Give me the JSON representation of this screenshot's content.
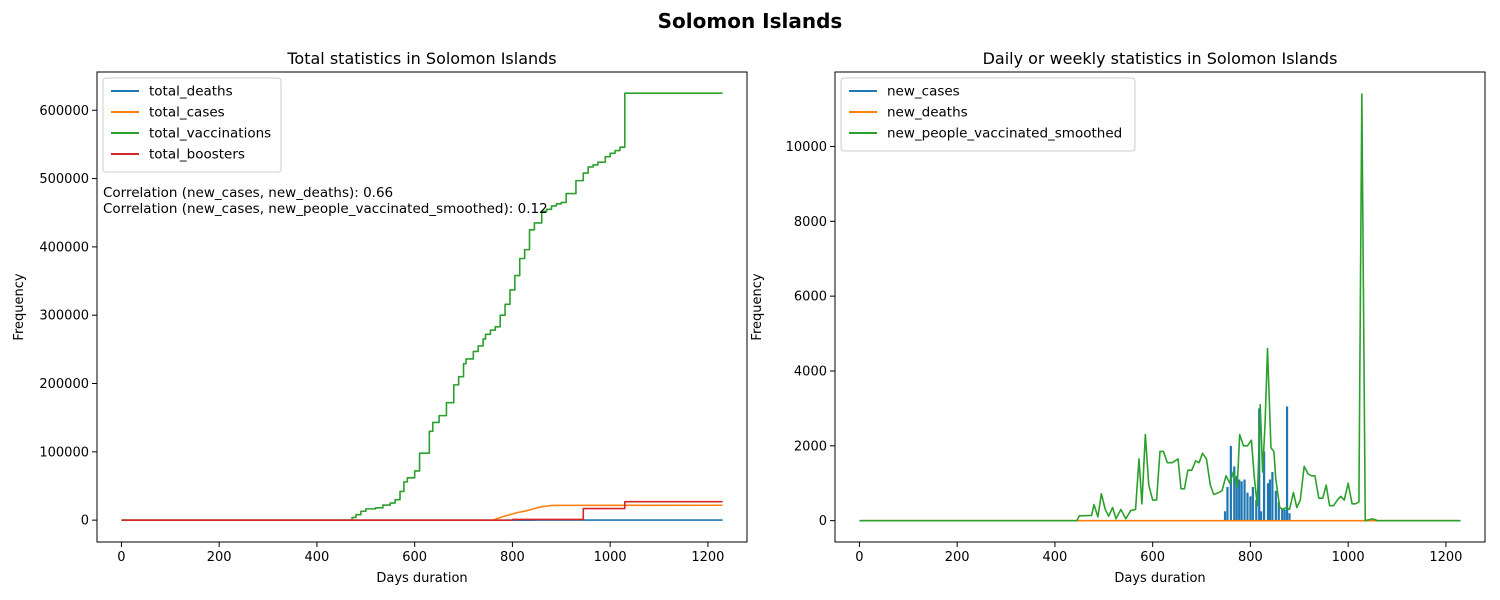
{
  "suptitle": "Solomon Islands",
  "colors": {
    "blue": "#1f77b4",
    "orange": "#ff7f0e",
    "green": "#2ca02c",
    "red": "#d62728"
  },
  "chart_data": [
    {
      "type": "line",
      "title": "Total statistics in Solomon Islands",
      "xlabel": "Days duration",
      "ylabel": "Frequency",
      "xlim": [
        -50,
        1280
      ],
      "ylim": [
        -32000,
        656000
      ],
      "xticks": [
        0,
        200,
        400,
        600,
        800,
        1000,
        1200
      ],
      "yticks": [
        0,
        100000,
        200000,
        300000,
        400000,
        500000,
        600000
      ],
      "legend_position": "upper-left",
      "annotations": [
        "Correlation (new_cases, new_deaths): 0.66",
        "Correlation (new_cases, new_people_vaccinated_smoothed): 0.12"
      ],
      "series": [
        {
          "name": "total_deaths",
          "color": "#1f77b4",
          "step": true,
          "points": [
            [
              0,
              0
            ],
            [
              845,
              0
            ],
            [
              845,
              150
            ],
            [
              1230,
              150
            ]
          ]
        },
        {
          "name": "total_cases",
          "color": "#ff7f0e",
          "step": false,
          "points": [
            [
              0,
              0
            ],
            [
              760,
              0
            ],
            [
              770,
              2500
            ],
            [
              780,
              5000
            ],
            [
              790,
              7000
            ],
            [
              800,
              9000
            ],
            [
              810,
              11000
            ],
            [
              820,
              12500
            ],
            [
              830,
              14000
            ],
            [
              840,
              16000
            ],
            [
              850,
              18000
            ],
            [
              860,
              19500
            ],
            [
              870,
              20500
            ],
            [
              880,
              21500
            ],
            [
              900,
              21600
            ],
            [
              1000,
              21700
            ],
            [
              1230,
              21800
            ]
          ]
        },
        {
          "name": "total_vaccinations",
          "color": "#2ca02c",
          "step": true,
          "points": [
            [
              0,
              0
            ],
            [
              465,
              0
            ],
            [
              472,
              4000
            ],
            [
              480,
              8000
            ],
            [
              490,
              13000
            ],
            [
              500,
              16500
            ],
            [
              520,
              18000
            ],
            [
              535,
              22000
            ],
            [
              550,
              25000
            ],
            [
              560,
              30000
            ],
            [
              570,
              42000
            ],
            [
              578,
              56000
            ],
            [
              585,
              62000
            ],
            [
              600,
              72000
            ],
            [
              610,
              98000
            ],
            [
              630,
              130000
            ],
            [
              637,
              143000
            ],
            [
              650,
              153000
            ],
            [
              665,
              172000
            ],
            [
              680,
              198000
            ],
            [
              690,
              210000
            ],
            [
              700,
              229000
            ],
            [
              705,
              236000
            ],
            [
              720,
              247000
            ],
            [
              730,
              255000
            ],
            [
              740,
              265000
            ],
            [
              745,
              272000
            ],
            [
              755,
              278000
            ],
            [
              765,
              283000
            ],
            [
              775,
              300000
            ],
            [
              785,
              316000
            ],
            [
              795,
              337000
            ],
            [
              805,
              358000
            ],
            [
              815,
              383000
            ],
            [
              825,
              396000
            ],
            [
              835,
              425000
            ],
            [
              845,
              435000
            ],
            [
              860,
              452000
            ],
            [
              870,
              455000
            ],
            [
              880,
              460000
            ],
            [
              890,
              463000
            ],
            [
              900,
              465000
            ],
            [
              910,
              478000
            ],
            [
              930,
              497000
            ],
            [
              945,
              508000
            ],
            [
              955,
              517000
            ],
            [
              965,
              520000
            ],
            [
              975,
              524000
            ],
            [
              990,
              532000
            ],
            [
              1000,
              537000
            ],
            [
              1010,
              541000
            ],
            [
              1020,
              546000
            ],
            [
              1030,
              625000
            ],
            [
              1230,
              625000
            ]
          ]
        },
        {
          "name": "total_boosters",
          "color": "#d62728",
          "step": true,
          "points": [
            [
              0,
              0
            ],
            [
              800,
              0
            ],
            [
              800,
              1000
            ],
            [
              945,
              1000
            ],
            [
              945,
              17000
            ],
            [
              1030,
              17000
            ],
            [
              1030,
              27000
            ],
            [
              1230,
              27000
            ]
          ]
        }
      ]
    },
    {
      "type": "line",
      "title": "Daily or weekly statistics in Solomon Islands",
      "xlabel": "Days duration",
      "ylabel": "Frequency",
      "xlim": [
        -50,
        1280
      ],
      "ylim": [
        -570,
        11990
      ],
      "xticks": [
        0,
        200,
        400,
        600,
        800,
        1000,
        1200
      ],
      "yticks": [
        0,
        2000,
        4000,
        6000,
        8000,
        10000
      ],
      "legend_position": "upper-left",
      "series": [
        {
          "name": "new_cases",
          "color": "#1f77b4",
          "spikes": [
            [
              748,
              250
            ],
            [
              753,
              900
            ],
            [
              760,
              2000
            ],
            [
              767,
              1450
            ],
            [
              772,
              1200
            ],
            [
              777,
              1100
            ],
            [
              782,
              1050
            ],
            [
              788,
              1100
            ],
            [
              794,
              750
            ],
            [
              800,
              650
            ],
            [
              805,
              900
            ],
            [
              812,
              550
            ],
            [
              818,
              3000
            ],
            [
              822,
              250
            ],
            [
              828,
              1850
            ],
            [
              836,
              1000
            ],
            [
              840,
              1100
            ],
            [
              845,
              1300
            ],
            [
              852,
              800
            ],
            [
              858,
              500
            ],
            [
              865,
              300
            ],
            [
              870,
              300
            ],
            [
              875,
              3050
            ],
            [
              880,
              200
            ]
          ]
        },
        {
          "name": "new_deaths",
          "color": "#ff7f0e",
          "points": [
            [
              0,
              0
            ],
            [
              1230,
              0
            ]
          ]
        },
        {
          "name": "new_people_vaccinated_smoothed",
          "color": "#2ca02c",
          "points": [
            [
              0,
              0
            ],
            [
              445,
              0
            ],
            [
              450,
              130
            ],
            [
              475,
              140
            ],
            [
              480,
              430
            ],
            [
              488,
              100
            ],
            [
              495,
              720
            ],
            [
              503,
              300
            ],
            [
              510,
              120
            ],
            [
              518,
              350
            ],
            [
              525,
              50
            ],
            [
              535,
              300
            ],
            [
              545,
              50
            ],
            [
              555,
              270
            ],
            [
              565,
              300
            ],
            [
              572,
              1650
            ],
            [
              578,
              450
            ],
            [
              585,
              2300
            ],
            [
              592,
              950
            ],
            [
              600,
              550
            ],
            [
              608,
              550
            ],
            [
              615,
              1850
            ],
            [
              622,
              1850
            ],
            [
              630,
              1550
            ],
            [
              640,
              1550
            ],
            [
              652,
              1650
            ],
            [
              658,
              850
            ],
            [
              665,
              850
            ],
            [
              672,
              1350
            ],
            [
              680,
              1350
            ],
            [
              688,
              1600
            ],
            [
              695,
              1550
            ],
            [
              702,
              1800
            ],
            [
              710,
              1650
            ],
            [
              718,
              950
            ],
            [
              725,
              700
            ],
            [
              735,
              750
            ],
            [
              742,
              800
            ],
            [
              750,
              1200
            ],
            [
              758,
              1000
            ],
            [
              765,
              1300
            ],
            [
              773,
              900
            ],
            [
              778,
              2300
            ],
            [
              786,
              2000
            ],
            [
              794,
              2000
            ],
            [
              802,
              2150
            ],
            [
              808,
              1150
            ],
            [
              814,
              400
            ],
            [
              820,
              3100
            ],
            [
              825,
              1300
            ],
            [
              830,
              2600
            ],
            [
              835,
              4600
            ],
            [
              842,
              1950
            ],
            [
              848,
              1850
            ],
            [
              852,
              1100
            ],
            [
              860,
              350
            ],
            [
              866,
              300
            ],
            [
              873,
              350
            ],
            [
              880,
              300
            ],
            [
              888,
              750
            ],
            [
              895,
              350
            ],
            [
              902,
              550
            ],
            [
              910,
              1450
            ],
            [
              918,
              1250
            ],
            [
              925,
              1200
            ],
            [
              932,
              1200
            ],
            [
              940,
              600
            ],
            [
              948,
              600
            ],
            [
              955,
              950
            ],
            [
              962,
              400
            ],
            [
              970,
              400
            ],
            [
              978,
              550
            ],
            [
              985,
              650
            ],
            [
              992,
              550
            ],
            [
              1000,
              1000
            ],
            [
              1008,
              450
            ],
            [
              1015,
              450
            ],
            [
              1022,
              500
            ],
            [
              1028,
              11400
            ],
            [
              1035,
              0
            ],
            [
              1050,
              50
            ],
            [
              1060,
              0
            ],
            [
              1230,
              0
            ]
          ]
        }
      ]
    }
  ]
}
